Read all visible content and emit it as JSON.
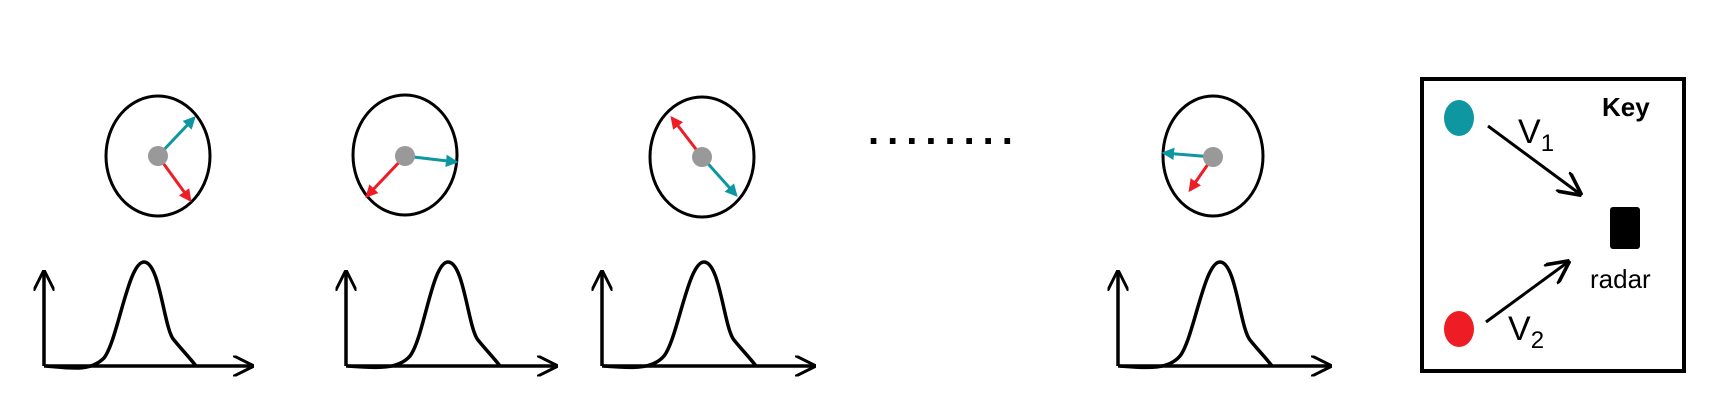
{
  "ellipsis": "........",
  "key": {
    "title": "Key",
    "v1_main": "V",
    "v1_sub": "1",
    "v2_main": "V",
    "v2_sub": "2",
    "radar_label": "radar"
  },
  "colors": {
    "teal": "#0e97a0",
    "red": "#ee1c25",
    "gray": "#999999",
    "black": "#000000"
  }
}
